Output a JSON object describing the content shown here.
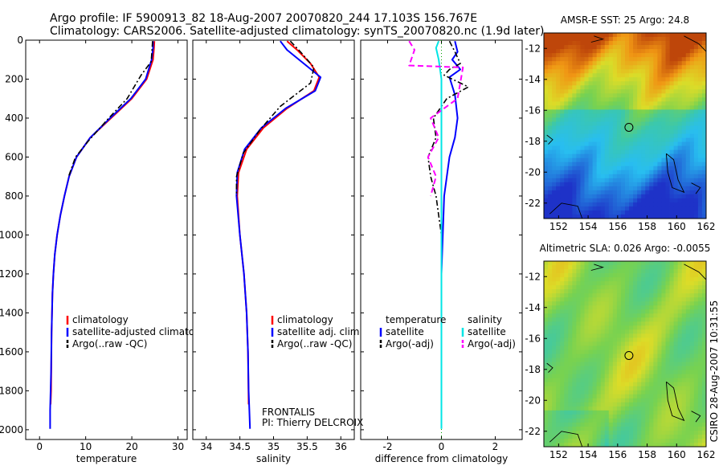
{
  "header": {
    "line1": "Argo profile: IF 5900913_82 18-Aug-2007 20070820_244 17.103S 156.767E",
    "line2": "Climatology: CARS2006. Satellite-adjusted climatology: synTS_20070820.nc (1.9d later)"
  },
  "side_label": "CSIRO 28-Aug-2007 10:31:55",
  "notes": {
    "frontalis": "FRONTALIS",
    "pi": "PI: Thierry DELCROIX"
  },
  "colors": {
    "climatology": "#ff0000",
    "satellite": "#0000ff",
    "argo": "#000000",
    "satellite_salinity": "#00e5e5",
    "argo_salinity": "#ff00ff",
    "sst_warm": "#c8500a",
    "sst_cool": "#1e64ff"
  },
  "chart_data": [
    {
      "id": "temperature",
      "type": "line",
      "xlabel": "temperature",
      "ylabel": "",
      "xlim": [
        -3,
        32
      ],
      "ylim": [
        2050,
        0
      ],
      "xticks": [
        0,
        10,
        20,
        30
      ],
      "yticks": [
        0,
        200,
        400,
        600,
        800,
        1000,
        1200,
        1400,
        1600,
        1800,
        2000
      ],
      "legend": [
        "climatology",
        "satellite-adjusted climatology",
        "Argo(..raw -QC)"
      ],
      "series": [
        {
          "name": "climatology",
          "x": [
            24.9,
            24.8,
            24.6,
            23.2,
            20.0,
            15.5,
            11.0,
            8.0,
            6.4,
            5.4,
            4.5,
            3.8,
            3.3,
            3.0,
            2.8,
            2.6,
            2.5,
            2.4
          ],
          "y": [
            5,
            40,
            100,
            200,
            300,
            400,
            500,
            600,
            700,
            800,
            900,
            1000,
            1100,
            1200,
            1300,
            1500,
            1800,
            1870
          ]
        },
        {
          "name": "satellite-adjusted climatology",
          "x": [
            24.6,
            24.6,
            24.3,
            23.0,
            19.8,
            15.3,
            11.0,
            8.0,
            6.4,
            5.4,
            4.5,
            3.8,
            3.3,
            3.0,
            2.8,
            2.6,
            2.5,
            2.4,
            2.3,
            2.3
          ],
          "y": [
            5,
            40,
            100,
            200,
            300,
            400,
            500,
            600,
            700,
            800,
            900,
            1000,
            1100,
            1200,
            1300,
            1500,
            1700,
            1800,
            1900,
            1995
          ]
        },
        {
          "name": "Argo(..raw -QC)",
          "x": [
            24.5,
            24.4,
            24.2,
            22.0,
            19.0,
            15.0,
            10.5,
            7.8,
            6.3
          ],
          "y": [
            5,
            40,
            110,
            180,
            300,
            400,
            520,
            600,
            700
          ]
        }
      ]
    },
    {
      "id": "salinity",
      "type": "line",
      "xlabel": "salinity",
      "ylabel": "",
      "xlim": [
        33.8,
        36.2
      ],
      "ylim": [
        2050,
        0
      ],
      "xticks": [
        34,
        34.5,
        35,
        35.5,
        36
      ],
      "legend": [
        "climatology",
        "satellite adj. clim.",
        "Argo(..raw -QC)"
      ],
      "series": [
        {
          "name": "climatology",
          "x": [
            35.2,
            35.35,
            35.55,
            35.68,
            35.6,
            35.2,
            34.85,
            34.6,
            34.48,
            34.46,
            34.5,
            34.56,
            34.6,
            34.62,
            34.63
          ],
          "y": [
            5,
            50,
            120,
            190,
            260,
            350,
            450,
            560,
            680,
            800,
            1000,
            1200,
            1400,
            1600,
            1870
          ]
        },
        {
          "name": "satellite adj. clim.",
          "x": [
            35.1,
            35.2,
            35.45,
            35.7,
            35.62,
            35.18,
            34.82,
            34.57,
            34.46,
            34.45,
            34.5,
            34.56,
            34.6,
            34.62,
            34.63,
            34.64,
            34.65
          ],
          "y": [
            5,
            50,
            120,
            190,
            260,
            350,
            450,
            560,
            680,
            800,
            1000,
            1200,
            1400,
            1600,
            1800,
            1900,
            1995
          ]
        },
        {
          "name": "Argo(..raw -QC)",
          "x": [
            35.25,
            35.4,
            35.6,
            35.55,
            35.1,
            34.8,
            34.55,
            34.45,
            34.45
          ],
          "y": [
            5,
            60,
            140,
            220,
            340,
            460,
            580,
            700,
            800
          ]
        }
      ]
    },
    {
      "id": "difference",
      "type": "line",
      "xlabel": "difference from climatology",
      "ylabel": "",
      "xlim": [
        -3,
        3
      ],
      "ylim": [
        2050,
        0
      ],
      "xticks": [
        -2,
        0,
        2
      ],
      "legend": [
        "temperature",
        "satellite",
        "Argo(-adj)",
        "salinity",
        "satellite",
        "Argo(-adj)"
      ],
      "series": [
        {
          "name": "temperature satellite",
          "x": [
            0.5,
            0.6,
            0.4,
            0.7,
            0.3,
            0.5,
            0.6,
            0.5,
            0.3,
            0.2,
            0.1,
            0.05,
            0.0,
            0.0,
            0.0
          ],
          "y": [
            5,
            60,
            100,
            150,
            190,
            280,
            400,
            500,
            600,
            700,
            800,
            1000,
            1200,
            1500,
            1650
          ]
        },
        {
          "name": "temperature Argo(-adj)",
          "x": [
            0.3,
            0.5,
            0.7,
            0.3,
            0.1,
            1.0,
            0.2,
            -0.3,
            -0.2,
            -0.5,
            -0.4,
            -0.2,
            -0.1,
            0.0
          ],
          "y": [
            5,
            60,
            120,
            150,
            180,
            240,
            300,
            400,
            500,
            600,
            700,
            800,
            900,
            1000
          ]
        },
        {
          "name": "salinity satellite",
          "x": [
            -0.1,
            -0.2,
            -0.1,
            0.0,
            0.0,
            0.0,
            0.0,
            0.0
          ],
          "y": [
            5,
            40,
            100,
            200,
            400,
            800,
            1400,
            1995
          ]
        },
        {
          "name": "salinity Argo(-adj)",
          "x": [
            -1.2,
            -1.0,
            -1.2,
            0.8,
            0.6,
            -0.4,
            -0.1,
            -0.5,
            -0.2,
            -0.4
          ],
          "y": [
            5,
            50,
            130,
            140,
            300,
            400,
            500,
            600,
            700,
            800
          ]
        }
      ]
    },
    {
      "id": "sst_map",
      "type": "heatmap",
      "title": "AMSR-E SST: 25 Argo: 24.8",
      "xlim": [
        151,
        162
      ],
      "ylim": [
        -23,
        -11
      ],
      "xticks": [
        152,
        154,
        156,
        158,
        160,
        162
      ],
      "yticks": [
        -12,
        -14,
        -16,
        -18,
        -20,
        -22
      ],
      "profile_location": [
        156.767,
        -17.103
      ]
    },
    {
      "id": "sla_map",
      "type": "heatmap",
      "title": "Altimetric SLA: 0.026 Argo: -0.0055",
      "xlim": [
        151,
        162
      ],
      "ylim": [
        -23,
        -11
      ],
      "xticks": [
        152,
        154,
        156,
        158,
        160,
        162
      ],
      "yticks": [
        -12,
        -14,
        -16,
        -18,
        -20,
        -22
      ],
      "profile_location": [
        156.767,
        -17.103
      ]
    }
  ]
}
